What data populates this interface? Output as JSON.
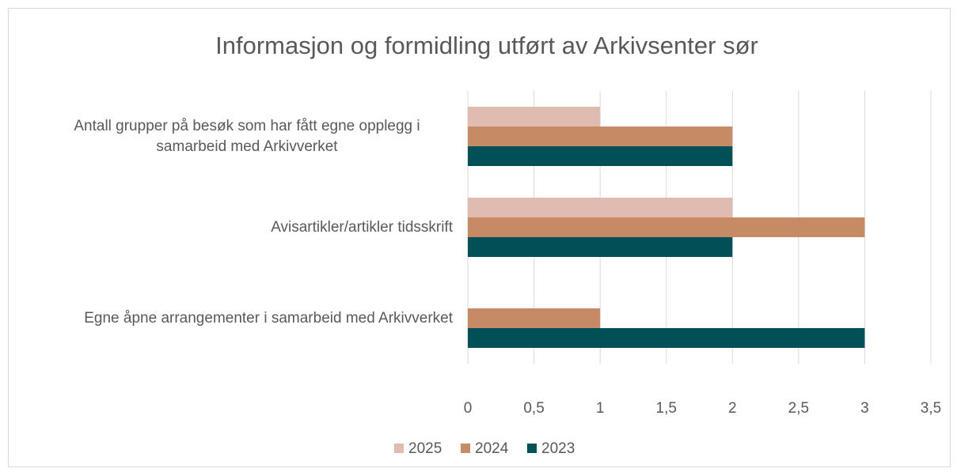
{
  "chart_data": {
    "type": "bar",
    "orientation": "horizontal",
    "title": "Informasjon og formidling utført av Arkivsenter sør",
    "categories": [
      "Antall grupper på besøk som har fått egne opplegg i samarbeid med Arkivverket",
      "Avisartikler/artikler tidsskrift",
      "Egne åpne arrangementer i samarbeid med Arkivverket"
    ],
    "series": [
      {
        "name": "2025",
        "color": "#e0bbb0",
        "values": [
          1,
          2,
          0
        ]
      },
      {
        "name": "2024",
        "color": "#c68a65",
        "values": [
          2,
          3,
          1
        ]
      },
      {
        "name": "2023",
        "color": "#005157",
        "values": [
          2,
          2,
          3
        ]
      }
    ],
    "xlim": [
      0,
      3.5
    ],
    "xticks": [
      0,
      {
        "value": 0.5,
        "label": "0,5"
      },
      1,
      {
        "value": 1.5,
        "label": "1,5"
      },
      2,
      {
        "value": 2.5,
        "label": "2,5"
      },
      3,
      {
        "value": 3.5,
        "label": "3,5"
      }
    ],
    "grid": true,
    "legend": "bottom"
  }
}
